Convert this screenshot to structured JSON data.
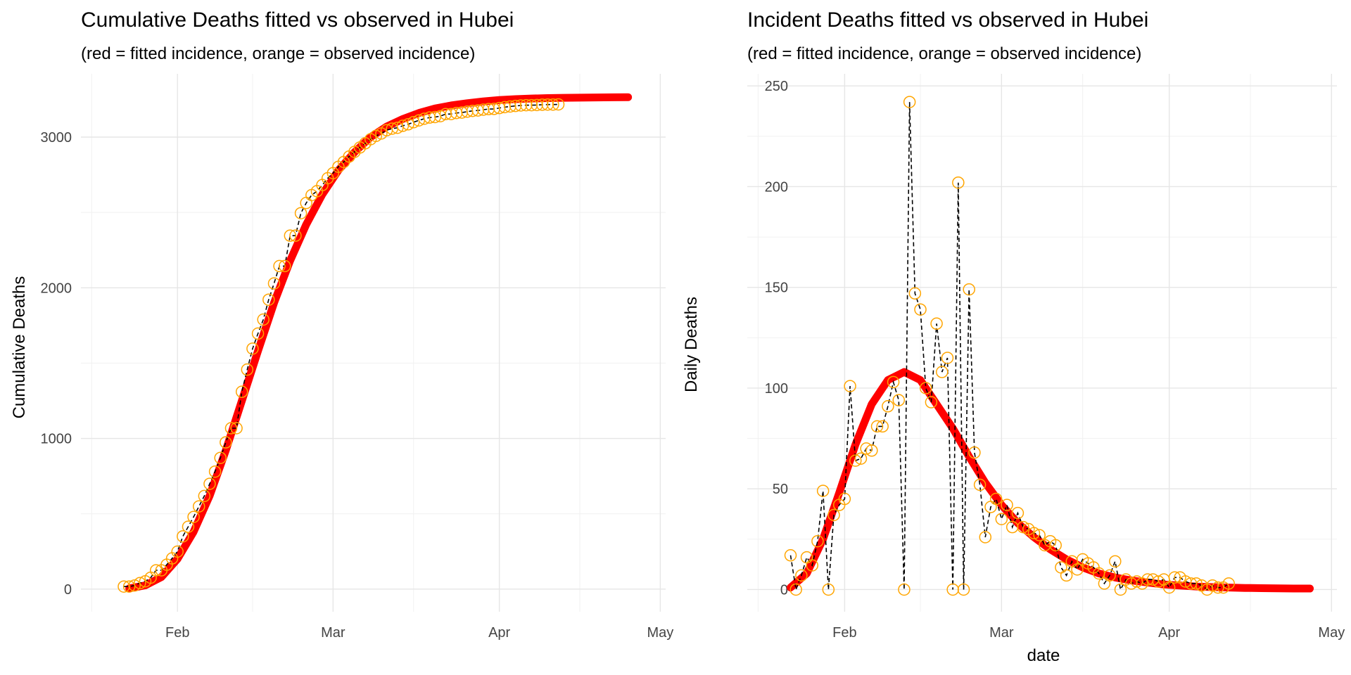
{
  "chart_data": [
    {
      "type": "line",
      "title": "Cumulative Deaths fitted vs observed in Hubei",
      "subtitle": "(red = fitted incidence, orange = observed incidence)",
      "xlabel": "",
      "ylabel": "Cumulative Deaths",
      "x_axis": {
        "type": "date",
        "range": [
          "2020-01-14",
          "2020-05-02"
        ],
        "tick_labels": [
          "Feb",
          "Mar",
          "Apr",
          "May"
        ]
      },
      "y_axis": {
        "range": [
          -150,
          3420
        ],
        "ticks": [
          0,
          1000,
          2000,
          3000
        ]
      },
      "grid": true,
      "legend": "none",
      "colors": {
        "fitted": "#ff0000",
        "observed": "#ffa500",
        "observed_line": "#000000"
      },
      "series": [
        {
          "role": "fitted",
          "x": [
            "2020-01-23",
            "2020-01-26",
            "2020-01-29",
            "2020-02-01",
            "2020-02-04",
            "2020-02-07",
            "2020-02-10",
            "2020-02-13",
            "2020-02-16",
            "2020-02-19",
            "2020-02-22",
            "2020-02-25",
            "2020-02-28",
            "2020-03-02",
            "2020-03-05",
            "2020-03-08",
            "2020-03-11",
            "2020-03-14",
            "2020-03-17",
            "2020-03-20",
            "2020-03-23",
            "2020-03-26",
            "2020-03-29",
            "2020-04-01",
            "2020-04-04",
            "2020-04-07",
            "2020-04-10",
            "2020-04-13",
            "2020-04-16",
            "2020-04-19",
            "2020-04-22",
            "2020-04-25"
          ],
          "values": [
            5,
            25,
            80,
            200,
            380,
            620,
            920,
            1250,
            1580,
            1900,
            2180,
            2420,
            2620,
            2780,
            2900,
            3000,
            3070,
            3120,
            3160,
            3190,
            3210,
            3225,
            3237,
            3246,
            3252,
            3256,
            3259,
            3261,
            3262,
            3263,
            3264,
            3265
          ]
        },
        {
          "role": "observed",
          "x": [
            "2020-01-22",
            "2020-01-23",
            "2020-01-24",
            "2020-01-25",
            "2020-01-26",
            "2020-01-27",
            "2020-01-28",
            "2020-01-29",
            "2020-01-30",
            "2020-01-31",
            "2020-02-01",
            "2020-02-02",
            "2020-02-03",
            "2020-02-04",
            "2020-02-05",
            "2020-02-06",
            "2020-02-07",
            "2020-02-08",
            "2020-02-09",
            "2020-02-10",
            "2020-02-11",
            "2020-02-12",
            "2020-02-13",
            "2020-02-14",
            "2020-02-15",
            "2020-02-16",
            "2020-02-17",
            "2020-02-18",
            "2020-02-19",
            "2020-02-20",
            "2020-02-21",
            "2020-02-22",
            "2020-02-23",
            "2020-02-24",
            "2020-02-25",
            "2020-02-26",
            "2020-02-27",
            "2020-02-28",
            "2020-02-29",
            "2020-03-01",
            "2020-03-02",
            "2020-03-03",
            "2020-03-04",
            "2020-03-05",
            "2020-03-06",
            "2020-03-07",
            "2020-03-08",
            "2020-03-09",
            "2020-03-10",
            "2020-03-11",
            "2020-03-12",
            "2020-03-13",
            "2020-03-14",
            "2020-03-15",
            "2020-03-16",
            "2020-03-17",
            "2020-03-18",
            "2020-03-19",
            "2020-03-20",
            "2020-03-21",
            "2020-03-22",
            "2020-03-23",
            "2020-03-24",
            "2020-03-25",
            "2020-03-26",
            "2020-03-27",
            "2020-03-28",
            "2020-03-29",
            "2020-03-30",
            "2020-03-31",
            "2020-04-01",
            "2020-04-02",
            "2020-04-03",
            "2020-04-04",
            "2020-04-05",
            "2020-04-06",
            "2020-04-07",
            "2020-04-08",
            "2020-04-09",
            "2020-04-10",
            "2020-04-11",
            "2020-04-12"
          ],
          "values": [
            17,
            17,
            24,
            40,
            52,
            76,
            125,
            125,
            162,
            204,
            249,
            350,
            414,
            479,
            549,
            618,
            699,
            780,
            871,
            974,
            1068,
            1068,
            1310,
            1457,
            1596,
            1696,
            1789,
            1921,
            2029,
            2144,
            2144,
            2346,
            2346,
            2495,
            2563,
            2615,
            2641,
            2682,
            2727,
            2761,
            2803,
            2835,
            2871,
            2902,
            2931,
            2959,
            2986,
            3008,
            3024,
            3046,
            3056,
            3062,
            3075,
            3085,
            3099,
            3111,
            3122,
            3130,
            3133,
            3139,
            3153,
            3153,
            3160,
            3163,
            3169,
            3174,
            3177,
            3182,
            3186,
            3187,
            3193,
            3199,
            3203,
            3207,
            3210,
            3212,
            3212,
            3213,
            3215,
            3216,
            3216,
            3217
          ]
        }
      ]
    },
    {
      "type": "line",
      "title": "Incident Deaths fitted vs observed in Hubei",
      "subtitle": "(red = fitted incidence, orange = observed incidence)",
      "xlabel": "date",
      "ylabel": "Daily Deaths",
      "x_axis": {
        "type": "date",
        "range": [
          "2020-01-14",
          "2020-05-02"
        ],
        "tick_labels": [
          "Feb",
          "Mar",
          "Apr",
          "May"
        ]
      },
      "y_axis": {
        "range": [
          -11,
          256
        ],
        "ticks": [
          0,
          50,
          100,
          150,
          200,
          250
        ]
      },
      "grid": true,
      "legend": "none",
      "colors": {
        "fitted": "#ff0000",
        "observed": "#ffa500",
        "observed_line": "#000000"
      },
      "series": [
        {
          "role": "fitted",
          "x": [
            "2020-01-22",
            "2020-01-25",
            "2020-01-28",
            "2020-01-31",
            "2020-02-03",
            "2020-02-06",
            "2020-02-09",
            "2020-02-12",
            "2020-02-15",
            "2020-02-18",
            "2020-02-21",
            "2020-02-24",
            "2020-02-27",
            "2020-03-01",
            "2020-03-04",
            "2020-03-07",
            "2020-03-10",
            "2020-03-13",
            "2020-03-16",
            "2020-03-19",
            "2020-03-22",
            "2020-03-25",
            "2020-03-28",
            "2020-03-31",
            "2020-04-03",
            "2020-04-06",
            "2020-04-09",
            "2020-04-12",
            "2020-04-15",
            "2020-04-18",
            "2020-04-21",
            "2020-04-24",
            "2020-04-27"
          ],
          "values": [
            1,
            8,
            25,
            48,
            72,
            92,
            104,
            108,
            104,
            92,
            80,
            66,
            53,
            42,
            33,
            26,
            20,
            15,
            11,
            8,
            6,
            4.5,
            3.5,
            2.5,
            2,
            1.5,
            1.2,
            1,
            0.8,
            0.7,
            0.6,
            0.5,
            0.5
          ]
        },
        {
          "role": "observed",
          "x": [
            "2020-01-22",
            "2020-01-23",
            "2020-01-24",
            "2020-01-25",
            "2020-01-26",
            "2020-01-27",
            "2020-01-28",
            "2020-01-29",
            "2020-01-30",
            "2020-01-31",
            "2020-02-01",
            "2020-02-02",
            "2020-02-03",
            "2020-02-04",
            "2020-02-05",
            "2020-02-06",
            "2020-02-07",
            "2020-02-08",
            "2020-02-09",
            "2020-02-10",
            "2020-02-11",
            "2020-02-12",
            "2020-02-13",
            "2020-02-14",
            "2020-02-15",
            "2020-02-16",
            "2020-02-17",
            "2020-02-18",
            "2020-02-19",
            "2020-02-20",
            "2020-02-21",
            "2020-02-22",
            "2020-02-23",
            "2020-02-24",
            "2020-02-25",
            "2020-02-26",
            "2020-02-27",
            "2020-02-28",
            "2020-02-29",
            "2020-03-01",
            "2020-03-02",
            "2020-03-03",
            "2020-03-04",
            "2020-03-05",
            "2020-03-06",
            "2020-03-07",
            "2020-03-08",
            "2020-03-09",
            "2020-03-10",
            "2020-03-11",
            "2020-03-12",
            "2020-03-13",
            "2020-03-14",
            "2020-03-15",
            "2020-03-16",
            "2020-03-17",
            "2020-03-18",
            "2020-03-19",
            "2020-03-20",
            "2020-03-21",
            "2020-03-22",
            "2020-03-23",
            "2020-03-24",
            "2020-03-25",
            "2020-03-26",
            "2020-03-27",
            "2020-03-28",
            "2020-03-29",
            "2020-03-30",
            "2020-03-31",
            "2020-04-01",
            "2020-04-02",
            "2020-04-03",
            "2020-04-04",
            "2020-04-05",
            "2020-04-06",
            "2020-04-07",
            "2020-04-08",
            "2020-04-09",
            "2020-04-10",
            "2020-04-11",
            "2020-04-12"
          ],
          "values": [
            17,
            0,
            7,
            16,
            12,
            24,
            49,
            0,
            37,
            42,
            45,
            101,
            64,
            65,
            70,
            69,
            81,
            81,
            91,
            103,
            94,
            0,
            242,
            147,
            139,
            100,
            93,
            132,
            108,
            115,
            0,
            202,
            0,
            149,
            68,
            52,
            26,
            41,
            45,
            35,
            42,
            31,
            38,
            31,
            30,
            28,
            27,
            22,
            24,
            22,
            11,
            7,
            14,
            10,
            15,
            13,
            11,
            8,
            3,
            7,
            14,
            0,
            5,
            3,
            4,
            3,
            5,
            5,
            4,
            5,
            1,
            6,
            6,
            4,
            3,
            3,
            2,
            0,
            2,
            1,
            1,
            3
          ]
        }
      ]
    }
  ]
}
